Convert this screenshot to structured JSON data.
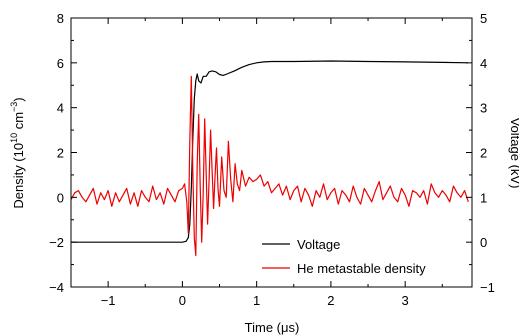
{
  "chart_data": {
    "type": "line",
    "xlabel": "Time (μs)",
    "ylabel_left": {
      "prefix": "Density (10",
      "exp1": "10",
      "mid": " cm",
      "exp2": "−3",
      "suffix": ")"
    },
    "ylabel_right": "Voltage (kV)",
    "xlim": [
      -1.5,
      3.9
    ],
    "ylim_left": [
      -4,
      8
    ],
    "ylim_right": [
      -1,
      5
    ],
    "x_ticks": [
      -1,
      0,
      1,
      2,
      3
    ],
    "x_tick_labels": [
      "−1",
      "0",
      "1",
      "2",
      "3"
    ],
    "y_left_ticks": [
      -4,
      -2,
      0,
      2,
      4,
      6,
      8
    ],
    "y_left_tick_labels": [
      "−4",
      "−2",
      "0",
      "2",
      "4",
      "6",
      "8"
    ],
    "y_right_ticks": [
      -1,
      0,
      1,
      2,
      3,
      4,
      5
    ],
    "y_right_tick_labels": [
      "−1",
      "0",
      "1",
      "2",
      "3",
      "4",
      "5"
    ],
    "grid": false,
    "legend_position": "bottom-right",
    "series": [
      {
        "name": "Voltage",
        "axis": "right",
        "color": "#000000",
        "x": [
          -1.5,
          -0.5,
          0.0,
          0.05,
          0.08,
          0.1,
          0.12,
          0.14,
          0.16,
          0.18,
          0.2,
          0.22,
          0.25,
          0.28,
          0.32,
          0.36,
          0.4,
          0.45,
          0.5,
          0.55,
          0.6,
          0.7,
          0.8,
          0.9,
          1.0,
          1.1,
          1.2,
          1.5,
          2.0,
          2.5,
          3.0,
          3.5,
          3.85
        ],
        "y": [
          0.0,
          0.0,
          0.0,
          0.02,
          0.1,
          0.4,
          1.2,
          2.3,
          3.2,
          3.6,
          3.75,
          3.6,
          3.55,
          3.7,
          3.7,
          3.8,
          3.82,
          3.8,
          3.74,
          3.72,
          3.75,
          3.82,
          3.9,
          3.96,
          4.0,
          4.02,
          4.03,
          4.03,
          4.04,
          4.03,
          4.02,
          4.01,
          4.0
        ]
      },
      {
        "name": "He metastable density",
        "axis": "left",
        "color": "#ee0000",
        "x": [
          -1.5,
          -1.45,
          -1.4,
          -1.35,
          -1.3,
          -1.25,
          -1.2,
          -1.15,
          -1.1,
          -1.05,
          -1.0,
          -0.95,
          -0.9,
          -0.85,
          -0.8,
          -0.75,
          -0.7,
          -0.65,
          -0.6,
          -0.55,
          -0.5,
          -0.45,
          -0.4,
          -0.35,
          -0.3,
          -0.25,
          -0.2,
          -0.15,
          -0.1,
          -0.05,
          0.0,
          0.03,
          0.06,
          0.08,
          0.1,
          0.12,
          0.14,
          0.16,
          0.18,
          0.2,
          0.22,
          0.24,
          0.26,
          0.28,
          0.3,
          0.32,
          0.34,
          0.36,
          0.38,
          0.4,
          0.42,
          0.44,
          0.46,
          0.48,
          0.5,
          0.53,
          0.56,
          0.59,
          0.62,
          0.65,
          0.68,
          0.71,
          0.74,
          0.77,
          0.8,
          0.85,
          0.9,
          0.95,
          1.0,
          1.05,
          1.1,
          1.15,
          1.2,
          1.25,
          1.3,
          1.35,
          1.4,
          1.45,
          1.5,
          1.55,
          1.6,
          1.65,
          1.7,
          1.75,
          1.8,
          1.85,
          1.9,
          1.95,
          2.0,
          2.05,
          2.1,
          2.15,
          2.2,
          2.25,
          2.3,
          2.35,
          2.4,
          2.45,
          2.5,
          2.55,
          2.6,
          2.65,
          2.7,
          2.75,
          2.8,
          2.85,
          2.9,
          2.95,
          3.0,
          3.05,
          3.1,
          3.15,
          3.2,
          3.25,
          3.3,
          3.35,
          3.4,
          3.45,
          3.5,
          3.55,
          3.6,
          3.65,
          3.7,
          3.75,
          3.8,
          3.85
        ],
        "y": [
          -0.1,
          0.2,
          0.3,
          0.0,
          -0.2,
          0.1,
          0.4,
          -0.3,
          0.2,
          -0.1,
          0.3,
          -0.4,
          0.2,
          -0.2,
          0.1,
          0.4,
          -0.3,
          0.2,
          -0.4,
          0.3,
          0.0,
          -0.2,
          0.5,
          -0.1,
          0.2,
          -0.3,
          0.4,
          0.1,
          -0.2,
          0.3,
          0.4,
          0.6,
          -0.2,
          -1.6,
          2.5,
          5.4,
          1.2,
          -1.8,
          -2.6,
          1.5,
          3.7,
          0.5,
          -2.0,
          0.2,
          3.5,
          1.0,
          -1.2,
          0.8,
          3.0,
          1.2,
          -0.5,
          1.0,
          2.2,
          0.4,
          -0.4,
          1.8,
          0.3,
          0.0,
          2.5,
          0.8,
          -0.2,
          1.5,
          0.6,
          0.3,
          1.2,
          0.5,
          0.9,
          0.7,
          0.8,
          1.0,
          0.5,
          0.7,
          0.2,
          0.4,
          0.6,
          0.1,
          0.5,
          -0.1,
          0.3,
          0.5,
          -0.2,
          0.4,
          0.1,
          -0.4,
          0.3,
          0.0,
          0.6,
          -0.1,
          0.2,
          0.4,
          -0.3,
          0.3,
          0.1,
          -0.2,
          0.5,
          0.0,
          -0.3,
          0.4,
          0.1,
          -0.2,
          0.3,
          0.7,
          -0.1,
          0.2,
          0.5,
          0.0,
          -0.2,
          0.4,
          0.1,
          -0.4,
          0.3,
          0.2,
          0.0,
          0.3,
          -0.3,
          0.6,
          0.2,
          0.0,
          0.3,
          0.1,
          -0.2,
          0.5,
          0.2,
          0.0,
          0.3,
          -0.2
        ]
      }
    ]
  }
}
